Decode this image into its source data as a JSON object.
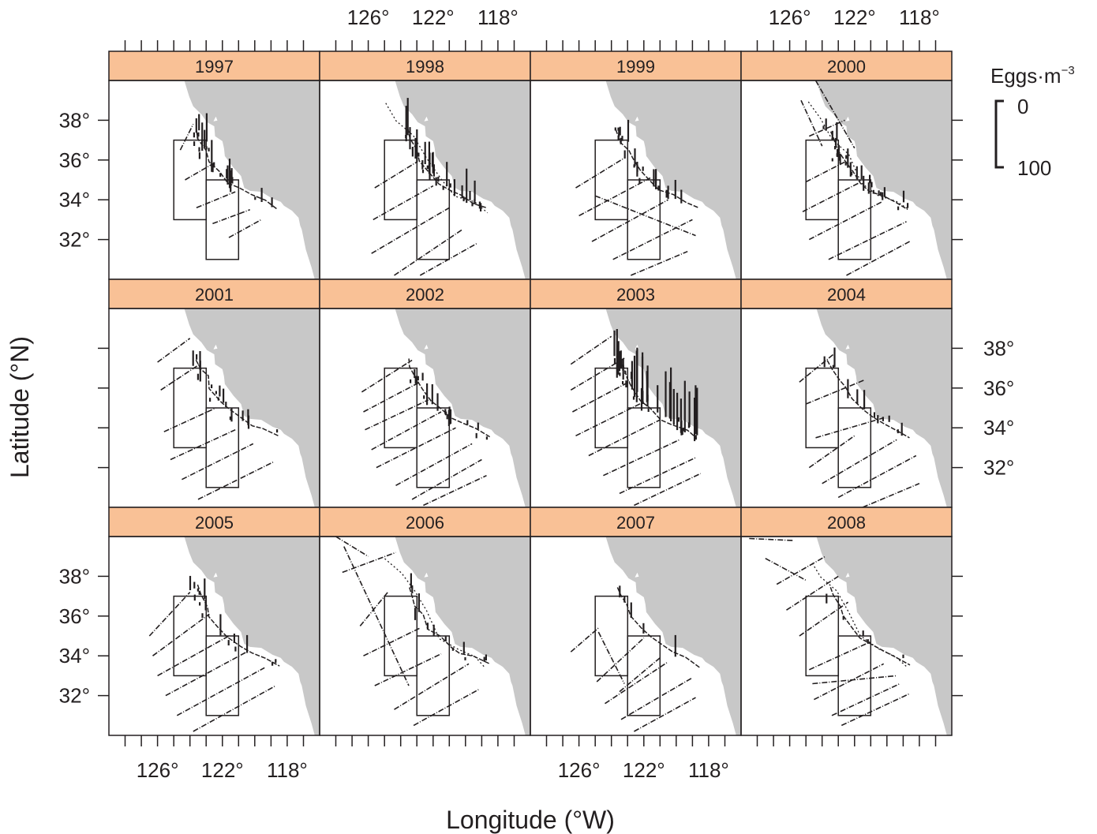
{
  "chart_data": {
    "type": "line",
    "panels": [
      "1997",
      "1998",
      "1999",
      "2000",
      "2001",
      "2002",
      "2003",
      "2004",
      "2005",
      "2006",
      "2007",
      "2008"
    ],
    "layout": "4 columns x 3 rows",
    "xlabel": "Longitude (°W)",
    "ylabel": "Latitude (°N)",
    "xlim": [
      129,
      116
    ],
    "ylim": [
      30,
      40
    ],
    "x_ticks": [
      128,
      127,
      126,
      125,
      124,
      123,
      122,
      121,
      120,
      119,
      118,
      117
    ],
    "x_tick_labels": [
      {
        "value": 126,
        "label": "126°"
      },
      {
        "value": 122,
        "label": "122°"
      },
      {
        "value": 118,
        "label": "118°"
      }
    ],
    "y_ticks": [
      38,
      36,
      34,
      32
    ],
    "y_tick_labels": [
      {
        "value": 38,
        "label": "38°"
      },
      {
        "value": 36,
        "label": "36°"
      },
      {
        "value": 34,
        "label": "34°"
      },
      {
        "value": 32,
        "label": "32°"
      }
    ],
    "strip_color": "#f9c196",
    "land_color": "#c8c8c8",
    "ink_color": "#231f20",
    "regions": [
      {
        "lon": [
          125,
          123
        ],
        "lat": [
          33,
          37
        ]
      },
      {
        "lon": [
          123,
          121
        ],
        "lat": [
          31,
          35
        ]
      }
    ],
    "legend": {
      "title": "Eggs·m",
      "title_superscript": "−3",
      "labels": [
        "0",
        "100"
      ],
      "values": [
        0,
        100
      ],
      "placement": "top-right"
    }
  }
}
